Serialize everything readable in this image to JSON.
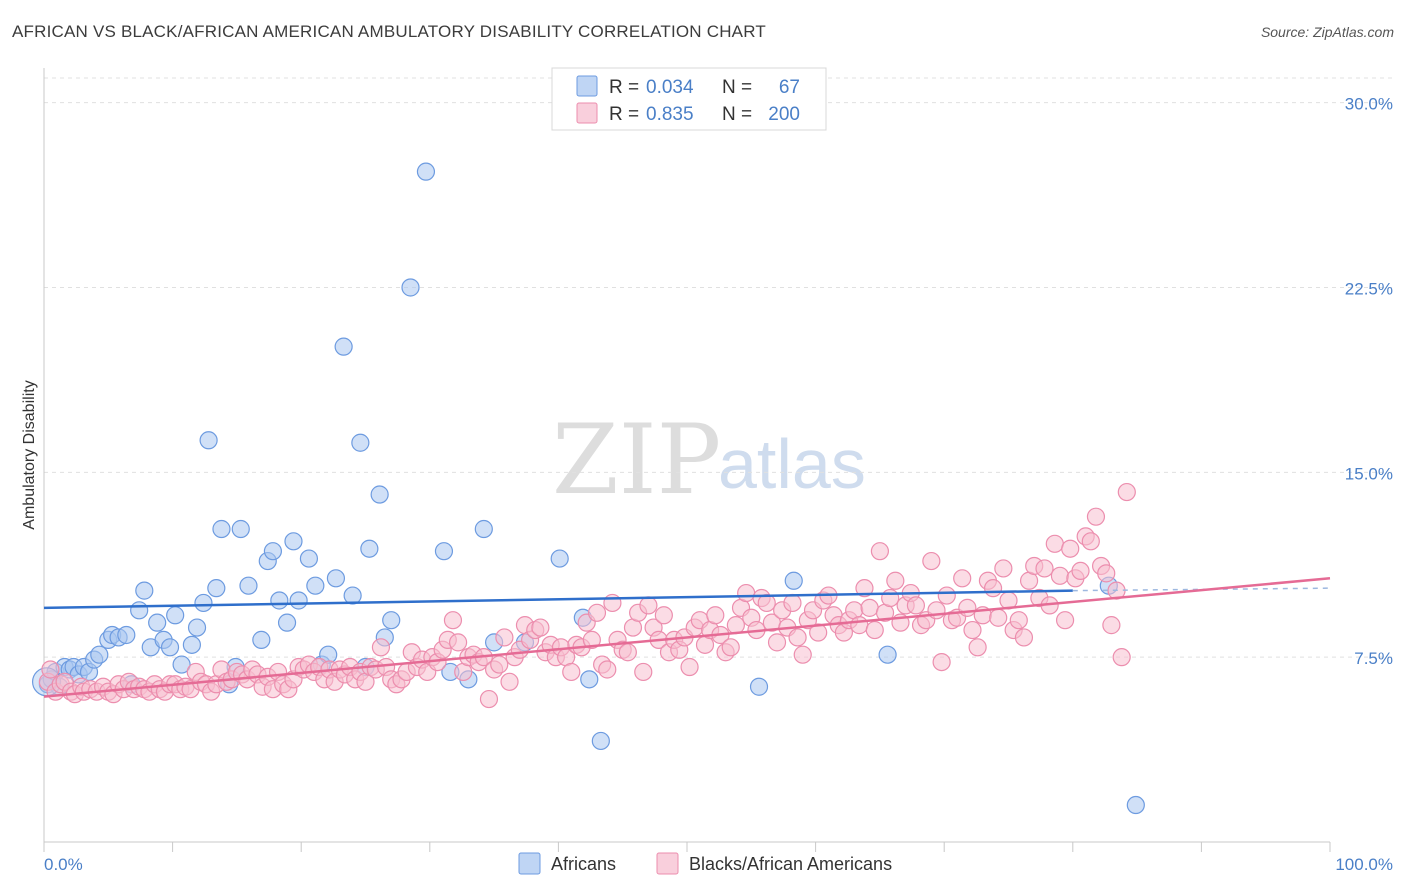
{
  "header": {
    "title": "AFRICAN VS BLACK/AFRICAN AMERICAN AMBULATORY DISABILITY CORRELATION CHART",
    "source": "Source: ZipAtlas.com"
  },
  "watermark": {
    "zip": "ZIP",
    "atlas": "atlas"
  },
  "legend": {
    "r_label": "R =",
    "n_label": "N =",
    "rows": [
      {
        "r": "0.034",
        "n": "67",
        "color": "#7aaae8"
      },
      {
        "r": "0.835",
        "n": "200",
        "color": "#f4a6bf"
      }
    ]
  },
  "bottom_legend": [
    "Africans",
    "Blacks/African Americans"
  ],
  "colors": {
    "blue_fill": "#a9c7f0",
    "blue_stroke": "#6d9be0",
    "blue_line": "#2f6fcb",
    "pink_fill": "#f7bfd0",
    "pink_stroke": "#ec8eae",
    "pink_line": "#e56b95",
    "axis_text": "#4a7fc7"
  },
  "chart_data": {
    "type": "scatter",
    "title": "AFRICAN VS BLACK/AFRICAN AMERICAN AMBULATORY DISABILITY CORRELATION CHART",
    "xlabel": "",
    "ylabel": "Ambulatory Disability",
    "xlim": [
      0,
      100
    ],
    "ylim": [
      0,
      31
    ],
    "x_tick_labels": [
      "0.0%",
      "100.0%"
    ],
    "y_ticks": [
      7.5,
      15.0,
      22.5,
      30.0
    ],
    "y_tick_labels": [
      "7.5%",
      "15.0%",
      "22.5%",
      "30.0%"
    ],
    "grid": "horizontal dashed",
    "series": [
      {
        "name": "Africans",
        "r": 0.034,
        "n": 67,
        "trend": {
          "x": [
            0,
            80
          ],
          "y": [
            9.5,
            10.2
          ],
          "dashed_to": [
            100,
            10.3
          ]
        },
        "points": [
          [
            0.3,
            6.4
          ],
          [
            0.6,
            6.6
          ],
          [
            0.9,
            6.9
          ],
          [
            1.2,
            6.3
          ],
          [
            1.6,
            7.1
          ],
          [
            2.0,
            7.0
          ],
          [
            2.3,
            7.1
          ],
          [
            2.7,
            6.8
          ],
          [
            3.1,
            7.1
          ],
          [
            3.5,
            6.9
          ],
          [
            3.9,
            7.4
          ],
          [
            4.3,
            7.6
          ],
          [
            5.0,
            8.2
          ],
          [
            5.3,
            8.4
          ],
          [
            5.8,
            8.3
          ],
          [
            6.4,
            8.4
          ],
          [
            6.8,
            6.4
          ],
          [
            7.4,
            9.4
          ],
          [
            7.8,
            10.2
          ],
          [
            8.3,
            7.9
          ],
          [
            8.8,
            8.9
          ],
          [
            9.3,
            8.2
          ],
          [
            9.8,
            7.9
          ],
          [
            10.2,
            9.2
          ],
          [
            10.7,
            7.2
          ],
          [
            11.5,
            8.0
          ],
          [
            11.9,
            8.7
          ],
          [
            12.4,
            9.7
          ],
          [
            12.8,
            16.3
          ],
          [
            13.4,
            10.3
          ],
          [
            13.8,
            12.7
          ],
          [
            14.4,
            6.4
          ],
          [
            14.9,
            7.1
          ],
          [
            15.3,
            12.7
          ],
          [
            15.9,
            10.4
          ],
          [
            16.9,
            8.2
          ],
          [
            17.4,
            11.4
          ],
          [
            17.8,
            11.8
          ],
          [
            18.3,
            9.8
          ],
          [
            18.9,
            8.9
          ],
          [
            19.4,
            12.2
          ],
          [
            19.8,
            9.8
          ],
          [
            20.6,
            11.5
          ],
          [
            21.1,
            10.4
          ],
          [
            21.6,
            7.2
          ],
          [
            22.1,
            7.6
          ],
          [
            22.7,
            10.7
          ],
          [
            23.3,
            20.1
          ],
          [
            24.0,
            10.0
          ],
          [
            24.6,
            16.2
          ],
          [
            25.0,
            7.1
          ],
          [
            25.3,
            11.9
          ],
          [
            26.1,
            14.1
          ],
          [
            26.5,
            8.3
          ],
          [
            27.0,
            9.0
          ],
          [
            28.5,
            22.5
          ],
          [
            29.7,
            27.2
          ],
          [
            31.1,
            11.8
          ],
          [
            31.6,
            6.9
          ],
          [
            33.0,
            6.6
          ],
          [
            34.2,
            12.7
          ],
          [
            35.0,
            8.1
          ],
          [
            37.4,
            8.1
          ],
          [
            40.1,
            11.5
          ],
          [
            41.9,
            9.1
          ],
          [
            42.4,
            6.6
          ],
          [
            43.3,
            4.1
          ],
          [
            55.6,
            6.3
          ],
          [
            58.3,
            10.6
          ],
          [
            65.6,
            7.6
          ],
          [
            82.8,
            10.4
          ],
          [
            84.9,
            1.5
          ]
        ]
      },
      {
        "name": "Blacks/African Americans",
        "r": 0.835,
        "n": 200,
        "trend": {
          "x": [
            0,
            100
          ],
          "y": [
            5.9,
            10.7
          ]
        },
        "points": [
          [
            0.3,
            6.5
          ],
          [
            0.5,
            7.0
          ],
          [
            0.9,
            6.1
          ],
          [
            1.3,
            6.4
          ],
          [
            1.6,
            6.5
          ],
          [
            2.1,
            6.1
          ],
          [
            2.4,
            6.0
          ],
          [
            2.9,
            6.3
          ],
          [
            3.1,
            6.1
          ],
          [
            3.6,
            6.2
          ],
          [
            4.1,
            6.1
          ],
          [
            4.6,
            6.3
          ],
          [
            5.0,
            6.1
          ],
          [
            5.4,
            6.0
          ],
          [
            5.8,
            6.4
          ],
          [
            6.2,
            6.2
          ],
          [
            6.6,
            6.5
          ],
          [
            7.0,
            6.2
          ],
          [
            7.4,
            6.3
          ],
          [
            7.8,
            6.2
          ],
          [
            8.2,
            6.1
          ],
          [
            8.6,
            6.4
          ],
          [
            9.0,
            6.2
          ],
          [
            9.4,
            6.1
          ],
          [
            9.8,
            6.4
          ],
          [
            10.2,
            6.4
          ],
          [
            10.6,
            6.2
          ],
          [
            11.0,
            6.3
          ],
          [
            11.4,
            6.2
          ],
          [
            11.8,
            6.9
          ],
          [
            12.2,
            6.5
          ],
          [
            12.6,
            6.4
          ],
          [
            13.0,
            6.1
          ],
          [
            13.4,
            6.4
          ],
          [
            13.8,
            7.0
          ],
          [
            14.2,
            6.5
          ],
          [
            14.6,
            6.6
          ],
          [
            15.0,
            6.9
          ],
          [
            15.4,
            6.8
          ],
          [
            15.8,
            6.6
          ],
          [
            16.2,
            7.0
          ],
          [
            16.6,
            6.8
          ],
          [
            17.0,
            6.3
          ],
          [
            17.4,
            6.7
          ],
          [
            17.8,
            6.2
          ],
          [
            18.2,
            6.9
          ],
          [
            18.6,
            6.4
          ],
          [
            19.0,
            6.2
          ],
          [
            19.4,
            6.6
          ],
          [
            19.8,
            7.1
          ],
          [
            20.2,
            7.0
          ],
          [
            20.6,
            7.2
          ],
          [
            21.0,
            6.9
          ],
          [
            21.4,
            7.1
          ],
          [
            21.8,
            6.6
          ],
          [
            22.2,
            7.0
          ],
          [
            22.6,
            6.5
          ],
          [
            23.0,
            7.0
          ],
          [
            23.4,
            6.8
          ],
          [
            23.8,
            7.1
          ],
          [
            24.2,
            6.6
          ],
          [
            24.6,
            6.9
          ],
          [
            25.0,
            6.5
          ],
          [
            25.4,
            7.1
          ],
          [
            25.8,
            7.0
          ],
          [
            26.2,
            7.9
          ],
          [
            26.6,
            7.1
          ],
          [
            27.0,
            6.6
          ],
          [
            27.4,
            6.4
          ],
          [
            27.8,
            6.6
          ],
          [
            28.2,
            6.9
          ],
          [
            28.6,
            7.7
          ],
          [
            29.0,
            7.1
          ],
          [
            29.4,
            7.4
          ],
          [
            29.8,
            6.9
          ],
          [
            30.2,
            7.5
          ],
          [
            30.6,
            7.3
          ],
          [
            31.0,
            7.8
          ],
          [
            31.4,
            8.2
          ],
          [
            31.8,
            9.0
          ],
          [
            32.2,
            8.1
          ],
          [
            32.6,
            6.9
          ],
          [
            33.0,
            7.5
          ],
          [
            33.4,
            7.6
          ],
          [
            33.8,
            7.3
          ],
          [
            34.2,
            7.5
          ],
          [
            34.6,
            5.8
          ],
          [
            35.0,
            7.0
          ],
          [
            35.4,
            7.2
          ],
          [
            35.8,
            8.3
          ],
          [
            36.2,
            6.5
          ],
          [
            36.6,
            7.5
          ],
          [
            37.0,
            7.8
          ],
          [
            37.4,
            8.8
          ],
          [
            37.8,
            8.2
          ],
          [
            38.2,
            8.6
          ],
          [
            38.6,
            8.7
          ],
          [
            39.0,
            7.7
          ],
          [
            39.4,
            8.0
          ],
          [
            39.8,
            7.5
          ],
          [
            40.2,
            7.9
          ],
          [
            40.6,
            7.5
          ],
          [
            41.0,
            6.9
          ],
          [
            41.4,
            8.0
          ],
          [
            41.8,
            7.9
          ],
          [
            42.2,
            8.9
          ],
          [
            42.6,
            8.2
          ],
          [
            43.0,
            9.3
          ],
          [
            43.4,
            7.2
          ],
          [
            43.8,
            7.0
          ],
          [
            44.2,
            9.7
          ],
          [
            44.6,
            8.2
          ],
          [
            45.0,
            7.8
          ],
          [
            45.4,
            7.7
          ],
          [
            45.8,
            8.7
          ],
          [
            46.2,
            9.3
          ],
          [
            46.6,
            6.9
          ],
          [
            47.0,
            9.6
          ],
          [
            47.4,
            8.7
          ],
          [
            47.8,
            8.2
          ],
          [
            48.2,
            9.2
          ],
          [
            48.6,
            7.7
          ],
          [
            49.0,
            8.2
          ],
          [
            49.4,
            7.8
          ],
          [
            49.8,
            8.3
          ],
          [
            50.2,
            7.1
          ],
          [
            50.6,
            8.7
          ],
          [
            51.0,
            9.0
          ],
          [
            51.4,
            8.0
          ],
          [
            51.8,
            8.6
          ],
          [
            52.2,
            9.2
          ],
          [
            52.6,
            8.4
          ],
          [
            53.0,
            7.7
          ],
          [
            53.4,
            7.9
          ],
          [
            53.8,
            8.8
          ],
          [
            54.2,
            9.5
          ],
          [
            54.6,
            10.1
          ],
          [
            55.0,
            9.1
          ],
          [
            55.4,
            8.6
          ],
          [
            55.8,
            9.9
          ],
          [
            56.2,
            9.7
          ],
          [
            56.6,
            8.9
          ],
          [
            57.0,
            8.1
          ],
          [
            57.4,
            9.4
          ],
          [
            57.8,
            8.7
          ],
          [
            58.2,
            9.7
          ],
          [
            58.6,
            8.3
          ],
          [
            59.0,
            7.6
          ],
          [
            59.4,
            9.0
          ],
          [
            59.8,
            9.4
          ],
          [
            60.2,
            8.5
          ],
          [
            60.6,
            9.8
          ],
          [
            61.0,
            10.0
          ],
          [
            61.4,
            9.2
          ],
          [
            61.8,
            8.8
          ],
          [
            62.2,
            8.5
          ],
          [
            62.6,
            9.0
          ],
          [
            63.0,
            9.4
          ],
          [
            63.4,
            8.8
          ],
          [
            63.8,
            10.3
          ],
          [
            64.2,
            9.5
          ],
          [
            64.6,
            8.6
          ],
          [
            65.0,
            11.8
          ],
          [
            65.4,
            9.3
          ],
          [
            65.8,
            9.9
          ],
          [
            66.2,
            10.6
          ],
          [
            66.6,
            8.9
          ],
          [
            67.0,
            9.6
          ],
          [
            67.4,
            10.1
          ],
          [
            67.8,
            9.6
          ],
          [
            68.2,
            8.8
          ],
          [
            68.6,
            9.0
          ],
          [
            69.0,
            11.4
          ],
          [
            69.4,
            9.4
          ],
          [
            69.8,
            7.3
          ],
          [
            70.2,
            10.0
          ],
          [
            70.6,
            9.0
          ],
          [
            71.0,
            9.1
          ],
          [
            71.4,
            10.7
          ],
          [
            71.8,
            9.5
          ],
          [
            72.2,
            8.6
          ],
          [
            72.6,
            7.9
          ],
          [
            73.0,
            9.2
          ],
          [
            73.4,
            10.6
          ],
          [
            73.8,
            10.3
          ],
          [
            74.2,
            9.1
          ],
          [
            74.6,
            11.1
          ],
          [
            75.0,
            9.8
          ],
          [
            75.4,
            8.6
          ],
          [
            75.8,
            9.0
          ],
          [
            76.2,
            8.3
          ],
          [
            76.6,
            10.6
          ],
          [
            77.0,
            11.2
          ],
          [
            77.4,
            9.9
          ],
          [
            77.8,
            11.1
          ],
          [
            78.2,
            9.6
          ],
          [
            78.6,
            12.1
          ],
          [
            79.0,
            10.8
          ],
          [
            79.4,
            9.0
          ],
          [
            79.8,
            11.9
          ],
          [
            80.2,
            10.7
          ],
          [
            80.6,
            11.0
          ],
          [
            81.0,
            12.4
          ],
          [
            81.4,
            12.2
          ],
          [
            81.8,
            13.2
          ],
          [
            82.2,
            11.2
          ],
          [
            82.6,
            10.9
          ],
          [
            83.0,
            8.8
          ],
          [
            83.4,
            10.2
          ],
          [
            83.8,
            7.5
          ],
          [
            84.2,
            14.2
          ]
        ]
      }
    ]
  }
}
